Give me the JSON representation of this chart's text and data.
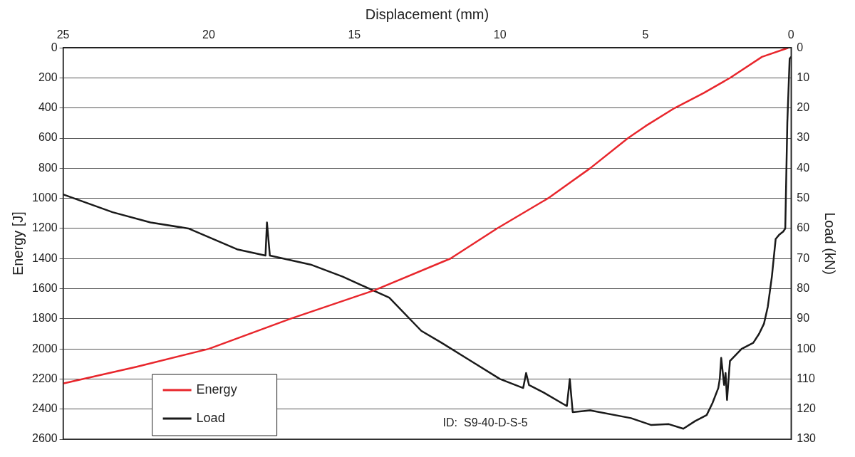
{
  "chart_data": {
    "type": "line",
    "xlabel": "Displacement (mm)",
    "ylabel": "Energy [J]",
    "y2label": "Load (kN)",
    "xlim": [
      25,
      0
    ],
    "xticks": [
      25,
      20,
      15,
      10,
      5,
      0
    ],
    "ylim": [
      2600,
      0
    ],
    "yticks": [
      0,
      200,
      400,
      600,
      800,
      1000,
      1200,
      1400,
      1600,
      1800,
      2000,
      2200,
      2400,
      2600
    ],
    "y2lim": [
      130,
      0
    ],
    "y2ticks": [
      0,
      10,
      20,
      30,
      40,
      50,
      60,
      70,
      80,
      90,
      100,
      110,
      120,
      130
    ],
    "grid": "y",
    "legend": "bottom left",
    "marker": "none",
    "line_style": "solid",
    "annotations": [
      "ID:  S9-40-D-S-5"
    ],
    "series": [
      {
        "name": "Energy",
        "color": "#e8262c",
        "x": [
          0.1,
          1,
          2.1,
          3,
          4,
          5,
          5.6,
          6.9,
          8.35,
          10.1,
          11.7,
          14.3,
          17.2,
          20,
          22.5,
          25
        ],
        "values": [
          0,
          60,
          200,
          300,
          400,
          520,
          600,
          800,
          1000,
          1200,
          1400,
          1610,
          1800,
          2000,
          2120,
          2230
        ]
      },
      {
        "name": "Load",
        "color": "#1a1a1a",
        "axis": "y2",
        "x": [
          0,
          0.05,
          0.13,
          0.2,
          0.27,
          0.4,
          0.53,
          0.66,
          0.8,
          0.93,
          1.1,
          1.3,
          1.7,
          2.1,
          2.2,
          2.25,
          2.3,
          2.4,
          2.45,
          2.5,
          2.7,
          2.9,
          3.3,
          3.7,
          4.2,
          4.8,
          5.5,
          6.9,
          7.5,
          7.6,
          7.7,
          8.5,
          9.0,
          9.1,
          9.2,
          10,
          11,
          12,
          12.7,
          13.8,
          15.4,
          16.5,
          17.9,
          18.0,
          18.05,
          19,
          20.7,
          22,
          23.3,
          25
        ],
        "values": [
          3,
          3.6,
          25,
          60,
          61,
          62,
          63.5,
          76,
          86,
          91.6,
          95,
          98,
          100,
          104,
          117,
          108,
          112,
          103,
          110,
          113,
          118,
          122,
          124,
          126.5,
          125,
          125.3,
          123,
          120.4,
          121,
          110,
          119,
          114.5,
          112,
          108,
          113,
          110,
          104,
          98,
          94,
          83,
          76,
          72,
          69,
          58,
          69,
          67,
          60,
          58,
          54.6,
          48.7
        ]
      }
    ]
  }
}
